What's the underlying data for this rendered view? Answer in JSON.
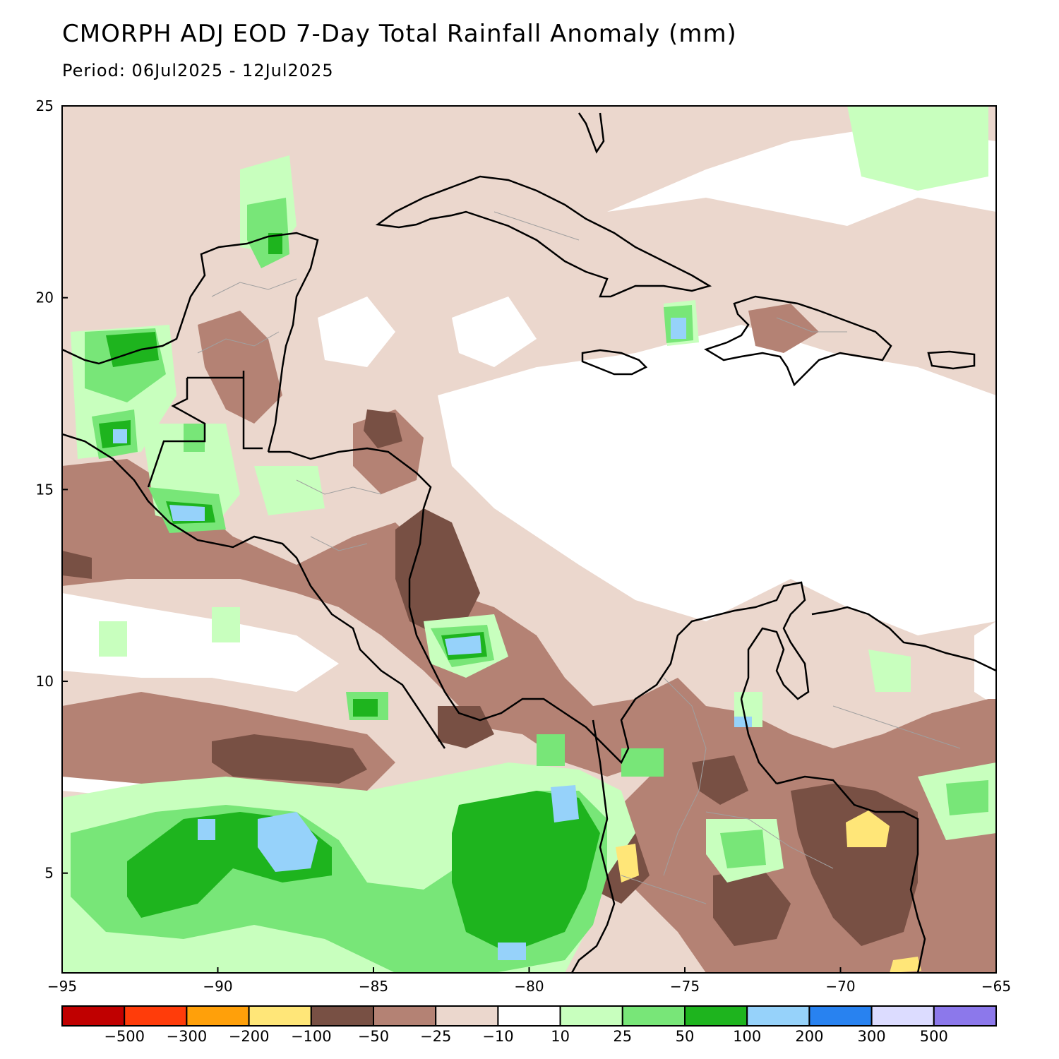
{
  "title": "CMORPH ADJ EOD 7-Day Total Rainfall Anomaly (mm)",
  "subtitle": "Period: 06Jul2025 - 12Jul2025",
  "map": {
    "lon_range": [
      -95,
      -65
    ],
    "lat_range": [
      2.4,
      25
    ],
    "x_ticks": [
      {
        "value": -95,
        "label": "−95"
      },
      {
        "value": -90,
        "label": "−90"
      },
      {
        "value": -85,
        "label": "−85"
      },
      {
        "value": -80,
        "label": "−80"
      },
      {
        "value": -75,
        "label": "−75"
      },
      {
        "value": -70,
        "label": "−70"
      },
      {
        "value": -65,
        "label": "−65"
      }
    ],
    "y_ticks": [
      {
        "value": 25,
        "label": "25"
      },
      {
        "value": 20,
        "label": "20"
      },
      {
        "value": 15,
        "label": "15"
      },
      {
        "value": 10,
        "label": "10"
      },
      {
        "value": 5,
        "label": "5"
      }
    ]
  },
  "colorbar": {
    "colors": [
      "#c00000",
      "#ff3c0a",
      "#ffa00a",
      "#ffe678",
      "#785044",
      "#b48274",
      "#ebd7cd",
      "#ffffff",
      "#c8ffbe",
      "#78e678",
      "#1eb41e",
      "#96d2fa",
      "#2882f0",
      "#dcdcff",
      "#8c78eb"
    ],
    "labels": [
      "−500",
      "−300",
      "−200",
      "−100",
      "−50",
      "−25",
      "−10",
      "10",
      "25",
      "50",
      "100",
      "200",
      "300",
      "500"
    ]
  },
  "legend_colors": {
    "dry_extreme": "#c00000",
    "dry_strong": "#785044",
    "dry_moderate": "#b48274",
    "dry_light": "#ebd7cd",
    "near_normal": "#ffffff",
    "wet_light": "#c8ffbe",
    "wet_moderate": "#78e678",
    "wet_strong": "#1eb41e",
    "wet_heavy": "#96d2fa",
    "coastline": "#000000",
    "admin_borders": "#a0a0a0"
  }
}
